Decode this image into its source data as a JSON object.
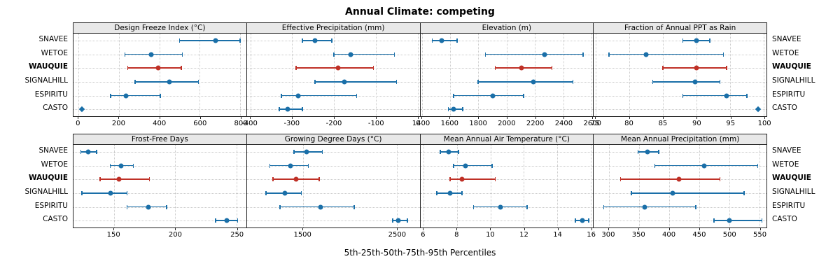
{
  "title": "Annual Climate: competing",
  "caption": "5th-25th-50th-75th-95th Percentiles",
  "colors": {
    "normal": "#1a6fa8",
    "highlight": "#bf3026",
    "grid": "#c9c9c9",
    "panel_header_bg": "#e8e8e8",
    "border": "#222222"
  },
  "stations": [
    {
      "name": "SNAVEE",
      "highlight": false
    },
    {
      "name": "WETOE",
      "highlight": false
    },
    {
      "name": "WAUQUIE",
      "highlight": true
    },
    {
      "name": "SIGNALHILL",
      "highlight": false
    },
    {
      "name": "ESPIRITU",
      "highlight": false
    },
    {
      "name": "CASTO",
      "highlight": false
    }
  ],
  "chart_data": [
    {
      "type": "dotplot-percentiles",
      "title": "Design Freeze Index (°C)",
      "xlim": [
        -25,
        830
      ],
      "ticks": [
        0,
        200,
        400,
        600,
        800
      ],
      "grid": true,
      "series": [
        {
          "station": "SNAVEE",
          "p5": 500,
          "p50": 680,
          "p95": 800,
          "marker": "circle"
        },
        {
          "station": "WETOE",
          "p5": 230,
          "p50": 360,
          "p95": 515,
          "marker": "circle"
        },
        {
          "station": "WAUQUIE",
          "p5": 245,
          "p50": 395,
          "p95": 510,
          "marker": "circle"
        },
        {
          "station": "SIGNALHILL",
          "p5": 280,
          "p50": 450,
          "p95": 595,
          "marker": "circle"
        },
        {
          "station": "ESPIRITU",
          "p5": 160,
          "p50": 235,
          "p95": 405,
          "marker": "circle"
        },
        {
          "station": "CASTO",
          "p5": 15,
          "p50": 15,
          "p95": 15,
          "marker": "diamond"
        }
      ]
    },
    {
      "type": "dotplot-percentiles",
      "title": "Effective Precipitation (mm)",
      "xlim": [
        -408,
        5
      ],
      "ticks": [
        -400,
        -300,
        -200,
        -100,
        0
      ],
      "grid": true,
      "series": [
        {
          "station": "SNAVEE",
          "p5": -275,
          "p50": -245,
          "p95": -205,
          "marker": "circle"
        },
        {
          "station": "WETOE",
          "p5": -200,
          "p50": -160,
          "p95": -55,
          "marker": "circle"
        },
        {
          "station": "WAUQUIE",
          "p5": -290,
          "p50": -190,
          "p95": -105,
          "marker": "circle"
        },
        {
          "station": "SIGNALHILL",
          "p5": -245,
          "p50": -175,
          "p95": -50,
          "marker": "circle"
        },
        {
          "station": "ESPIRITU",
          "p5": -325,
          "p50": -285,
          "p95": -145,
          "marker": "circle"
        },
        {
          "station": "CASTO",
          "p5": -330,
          "p50": -310,
          "p95": -275,
          "marker": "circle"
        }
      ]
    },
    {
      "type": "dotplot-percentiles",
      "title": "Elevation (m)",
      "xlim": [
        1390,
        2610
      ],
      "ticks": [
        1400,
        1600,
        1800,
        2000,
        2200,
        2400,
        2600
      ],
      "grid": true,
      "series": [
        {
          "station": "SNAVEE",
          "p5": 1475,
          "p50": 1540,
          "p95": 1650,
          "marker": "circle"
        },
        {
          "station": "WETOE",
          "p5": 1850,
          "p50": 2270,
          "p95": 2540,
          "marker": "circle"
        },
        {
          "station": "WAUQUIE",
          "p5": 1920,
          "p50": 2105,
          "p95": 2320,
          "marker": "circle"
        },
        {
          "station": "SIGNALHILL",
          "p5": 1800,
          "p50": 2190,
          "p95": 2470,
          "marker": "circle"
        },
        {
          "station": "ESPIRITU",
          "p5": 1625,
          "p50": 1900,
          "p95": 2120,
          "marker": "circle"
        },
        {
          "station": "CASTO",
          "p5": 1590,
          "p50": 1625,
          "p95": 1690,
          "marker": "circle"
        }
      ]
    },
    {
      "type": "dotplot-percentiles",
      "title": "Fraction of Annual PPT as Rain",
      "xlim": [
        74.7,
        100.4
      ],
      "ticks": [
        75,
        80,
        85,
        90,
        95,
        100
      ],
      "grid": true,
      "series": [
        {
          "station": "SNAVEE",
          "p5": 88,
          "p50": 90,
          "p95": 92,
          "marker": "circle"
        },
        {
          "station": "WETOE",
          "p5": 77,
          "p50": 82.5,
          "p95": 94,
          "marker": "circle"
        },
        {
          "station": "WAUQUIE",
          "p5": 85,
          "p50": 90,
          "p95": 94.5,
          "marker": "circle"
        },
        {
          "station": "SIGNALHILL",
          "p5": 83.5,
          "p50": 89.8,
          "p95": 93.5,
          "marker": "circle"
        },
        {
          "station": "ESPIRITU",
          "p5": 88,
          "p50": 94.5,
          "p95": 97.5,
          "marker": "circle"
        },
        {
          "station": "CASTO",
          "p5": 99.2,
          "p50": 99.2,
          "p95": 99.2,
          "marker": "diamond"
        }
      ]
    },
    {
      "type": "dotplot-percentiles",
      "title": "Frost-Free Days",
      "xlim": [
        117,
        258
      ],
      "ticks": [
        150,
        200,
        250
      ],
      "grid": true,
      "series": [
        {
          "station": "SNAVEE",
          "p5": 123,
          "p50": 129,
          "p95": 136,
          "marker": "circle"
        },
        {
          "station": "WETOE",
          "p5": 147,
          "p50": 156,
          "p95": 166,
          "marker": "circle"
        },
        {
          "station": "WAUQUIE",
          "p5": 139,
          "p50": 154,
          "p95": 179,
          "marker": "circle"
        },
        {
          "station": "SIGNALHILL",
          "p5": 124,
          "p50": 147,
          "p95": 161,
          "marker": "circle"
        },
        {
          "station": "ESPIRITU",
          "p5": 161,
          "p50": 178,
          "p95": 193,
          "marker": "circle"
        },
        {
          "station": "CASTO",
          "p5": 233,
          "p50": 242,
          "p95": 251,
          "marker": "circle"
        }
      ]
    },
    {
      "type": "dotplot-percentiles",
      "title": "Growing Degree Days (°C)",
      "xlim": [
        905,
        2745
      ],
      "ticks": [
        1500,
        2500
      ],
      "grid": true,
      "series": [
        {
          "station": "SNAVEE",
          "p5": 1410,
          "p50": 1540,
          "p95": 1710,
          "marker": "circle"
        },
        {
          "station": "WETOE",
          "p5": 1150,
          "p50": 1370,
          "p95": 1560,
          "marker": "circle"
        },
        {
          "station": "WAUQUIE",
          "p5": 1185,
          "p50": 1430,
          "p95": 1675,
          "marker": "circle"
        },
        {
          "station": "SIGNALHILL",
          "p5": 1110,
          "p50": 1310,
          "p95": 1485,
          "marker": "circle"
        },
        {
          "station": "ESPIRITU",
          "p5": 1260,
          "p50": 1690,
          "p95": 2050,
          "marker": "circle"
        },
        {
          "station": "CASTO",
          "p5": 2460,
          "p50": 2515,
          "p95": 2615,
          "marker": "circle"
        }
      ]
    },
    {
      "type": "dotplot-percentiles",
      "title": "Mean Annual Air Temperature (°C)",
      "xlim": [
        5.8,
        16.15
      ],
      "ticks": [
        6,
        8,
        10,
        12,
        14,
        16
      ],
      "grid": true,
      "series": [
        {
          "station": "SNAVEE",
          "p5": 7.0,
          "p50": 7.5,
          "p95": 8.1,
          "marker": "circle"
        },
        {
          "station": "WETOE",
          "p5": 7.8,
          "p50": 8.5,
          "p95": 10.1,
          "marker": "circle"
        },
        {
          "station": "WAUQUIE",
          "p5": 7.6,
          "p50": 8.3,
          "p95": 10.3,
          "marker": "circle"
        },
        {
          "station": "SIGNALHILL",
          "p5": 6.8,
          "p50": 7.6,
          "p95": 8.3,
          "marker": "circle"
        },
        {
          "station": "ESPIRITU",
          "p5": 9.0,
          "p50": 10.6,
          "p95": 12.2,
          "marker": "circle"
        },
        {
          "station": "CASTO",
          "p5": 15.1,
          "p50": 15.5,
          "p95": 15.9,
          "marker": "circle"
        }
      ]
    },
    {
      "type": "dotplot-percentiles",
      "title": "Mean Annual Precipitation (mm)",
      "xlim": [
        275,
        562
      ],
      "ticks": [
        300,
        350,
        400,
        450,
        500,
        550
      ],
      "grid": true,
      "series": [
        {
          "station": "SNAVEE",
          "p5": 349,
          "p50": 364,
          "p95": 383,
          "marker": "circle"
        },
        {
          "station": "WETOE",
          "p5": 377,
          "p50": 459,
          "p95": 548,
          "marker": "circle"
        },
        {
          "station": "WAUQUIE",
          "p5": 320,
          "p50": 417,
          "p95": 485,
          "marker": "circle"
        },
        {
          "station": "SIGNALHILL",
          "p5": 338,
          "p50": 406,
          "p95": 525,
          "marker": "circle"
        },
        {
          "station": "ESPIRITU",
          "p5": 292,
          "p50": 360,
          "p95": 445,
          "marker": "circle"
        },
        {
          "station": "CASTO",
          "p5": 475,
          "p50": 500,
          "p95": 555,
          "marker": "circle"
        }
      ]
    }
  ],
  "layout_hints": {
    "columns": 4,
    "rows": 2,
    "legend": "none",
    "grid": "dotted"
  }
}
